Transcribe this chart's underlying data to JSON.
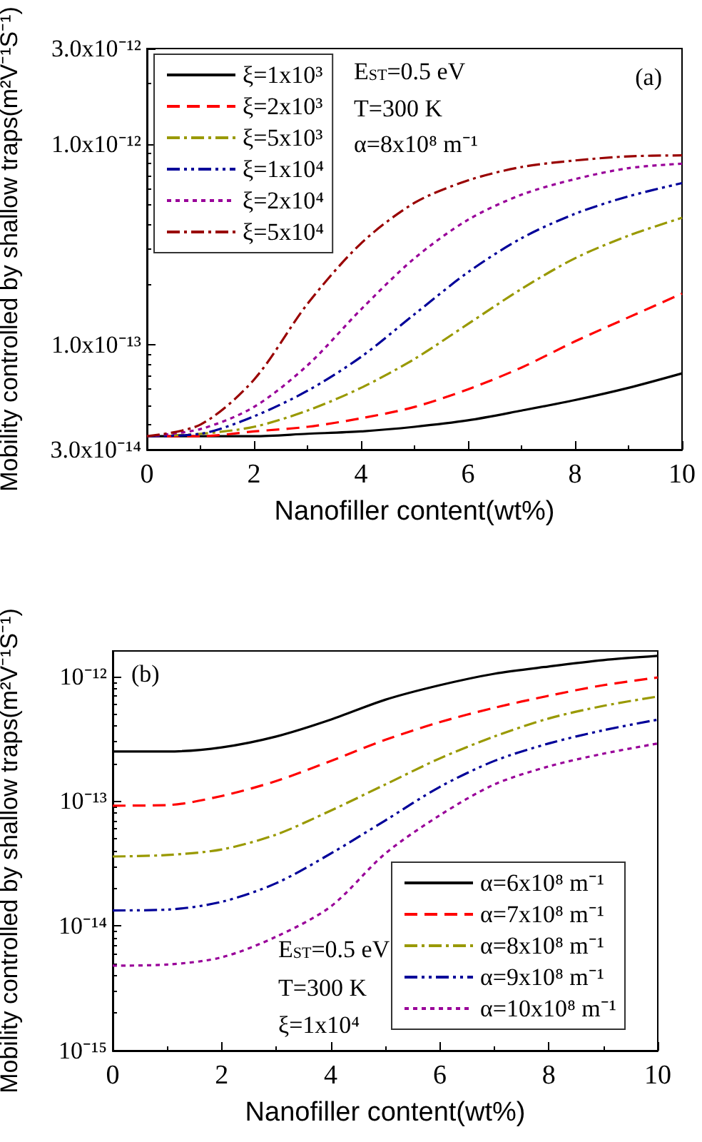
{
  "chart_data": [
    {
      "type": "line",
      "title": null,
      "xlabel": "Nanofiller content(wt%)",
      "ylabel": "Mobility controlled by shallow traps(m²V⁻¹S⁻¹)",
      "log": "y",
      "xlim": [
        0,
        10
      ],
      "xticks": [
        0,
        2,
        4,
        6,
        8,
        10
      ],
      "ylim": [
        3e-14,
        3e-12
      ],
      "yticks": [
        {
          "value": 3e-14,
          "label": "3.0x10⁻¹⁴"
        },
        {
          "value": 1e-13,
          "label": "1.0x10⁻¹³"
        },
        {
          "value": 1e-12,
          "label": "1.0x10⁻¹²"
        },
        {
          "value": 3e-12,
          "label": "3.0x10⁻¹²"
        }
      ],
      "legend": "top left",
      "grid": false,
      "marker": "none",
      "annotations": [
        "(a)",
        "E$_{ST}$=0.5 eV",
        "T=300 K",
        "α=8x10⁸ m⁻¹"
      ],
      "x": [
        0,
        1,
        2,
        3,
        4,
        5,
        6,
        7,
        8,
        9,
        10
      ],
      "series": [
        {
          "name": "ξ=1x10³",
          "color": "#000000",
          "line_style": "solid",
          "values": [
            3.5e-14,
            3.5e-14,
            3.5e-14,
            3.6e-14,
            3.7e-14,
            3.9e-14,
            4.2e-14,
            4.7e-14,
            5.3e-14,
            6.1e-14,
            7.2e-14
          ]
        },
        {
          "name": "ξ=2x10³",
          "color": "#ff0000",
          "line_style": "dashed",
          "values": [
            3.5e-14,
            3.5e-14,
            3.7e-14,
            3.9e-14,
            4.3e-14,
            4.9e-14,
            6e-14,
            7.7e-14,
            1.04e-13,
            1.37e-13,
            1.8e-13
          ]
        },
        {
          "name": "ξ=5x10³",
          "color": "#999900",
          "line_style": "dashdot",
          "values": [
            3.5e-14,
            3.6e-14,
            3.9e-14,
            4.7e-14,
            6.1e-14,
            8.5e-14,
            1.27e-13,
            1.9e-13,
            2.7e-13,
            3.5e-13,
            4.3e-13
          ]
        },
        {
          "name": "ξ=1x10⁴",
          "color": "#000099",
          "line_style": "dashdotdot",
          "values": [
            3.5e-14,
            3.6e-14,
            4.4e-14,
            5.9e-14,
            8.7e-14,
            1.42e-13,
            2.3e-13,
            3.4e-13,
            4.5e-13,
            5.5e-13,
            6.4e-13
          ]
        },
        {
          "name": "ξ=2x10⁴",
          "color": "#990099",
          "line_style": "dotted",
          "values": [
            3.5e-14,
            3.8e-14,
            4.9e-14,
            7.9e-14,
            1.5e-13,
            2.7e-13,
            4.2e-13,
            5.6e-13,
            6.7e-13,
            7.6e-13,
            8e-13
          ]
        },
        {
          "name": "ξ=5x10⁴",
          "color": "#990000",
          "line_style": "dashdot",
          "values": [
            3.5e-14,
            4e-14,
            6.7e-14,
            1.6e-13,
            3.2e-13,
            5.1e-13,
            6.6e-13,
            7.7e-13,
            8.3e-13,
            8.7e-13,
            8.8e-13
          ]
        }
      ]
    },
    {
      "type": "line",
      "title": null,
      "xlabel": "Nanofiller content(wt%)",
      "ylabel": "Mobility controlled by shallow traps(m²V⁻¹S⁻¹)",
      "log": "y",
      "xlim": [
        0,
        10
      ],
      "xticks": [
        0,
        2,
        4,
        6,
        8,
        10
      ],
      "ylim": [
        1e-15,
        1.6e-12
      ],
      "yticks": [
        {
          "value": 1e-15,
          "label": "10⁻¹⁵"
        },
        {
          "value": 1e-14,
          "label": "10⁻¹⁴"
        },
        {
          "value": 1e-13,
          "label": "10⁻¹³"
        },
        {
          "value": 1e-12,
          "label": "10⁻¹²"
        }
      ],
      "legend": "bottom right",
      "grid": false,
      "marker": "none",
      "annotations": [
        "(b)",
        "E$_{ST}$=0.5 eV",
        "T=300 K",
        "ξ=1x10⁴"
      ],
      "x": [
        0,
        1,
        2,
        3,
        4,
        5,
        6,
        7,
        8,
        9,
        10
      ],
      "series": [
        {
          "name": "α=6x10⁸ m⁻¹",
          "color": "#000000",
          "line_style": "solid",
          "values": [
            2.5e-13,
            2.5e-13,
            2.7e-13,
            3.3e-13,
            4.5e-13,
            6.5e-13,
            8.5e-13,
            1.05e-12,
            1.2e-12,
            1.35e-12,
            1.46e-12
          ]
        },
        {
          "name": "α=7x10⁸ m⁻¹",
          "color": "#ff0000",
          "line_style": "dashed",
          "values": [
            9.2e-14,
            9.3e-14,
            1.1e-13,
            1.45e-13,
            2.1e-13,
            3.1e-13,
            4.3e-13,
            5.6e-13,
            7e-13,
            8.5e-13,
            9.8e-13
          ]
        },
        {
          "name": "α=8x10⁸ m⁻¹",
          "color": "#999900",
          "line_style": "dashdot",
          "values": [
            3.6e-14,
            3.7e-14,
            4.1e-14,
            5.4e-14,
            8.4e-14,
            1.36e-13,
            2.2e-13,
            3.3e-13,
            4.6e-13,
            5.8e-13,
            6.9e-13
          ]
        },
        {
          "name": "α=9x10⁸ m⁻¹",
          "color": "#000099",
          "line_style": "dashdotdot",
          "values": [
            1.33e-14,
            1.35e-14,
            1.56e-14,
            2.2e-14,
            3.8e-14,
            7e-14,
            1.3e-13,
            2.1e-13,
            2.9e-13,
            3.7e-13,
            4.5e-13
          ]
        },
        {
          "name": "α=10x10⁸ m⁻¹",
          "color": "#990099",
          "line_style": "dotted",
          "values": [
            4.8e-15,
            4.9e-15,
            5.6e-15,
            8.2e-15,
            1.43e-14,
            3.8e-14,
            7.7e-14,
            1.36e-13,
            1.9e-13,
            2.4e-13,
            2.9e-13
          ]
        }
      ]
    }
  ]
}
